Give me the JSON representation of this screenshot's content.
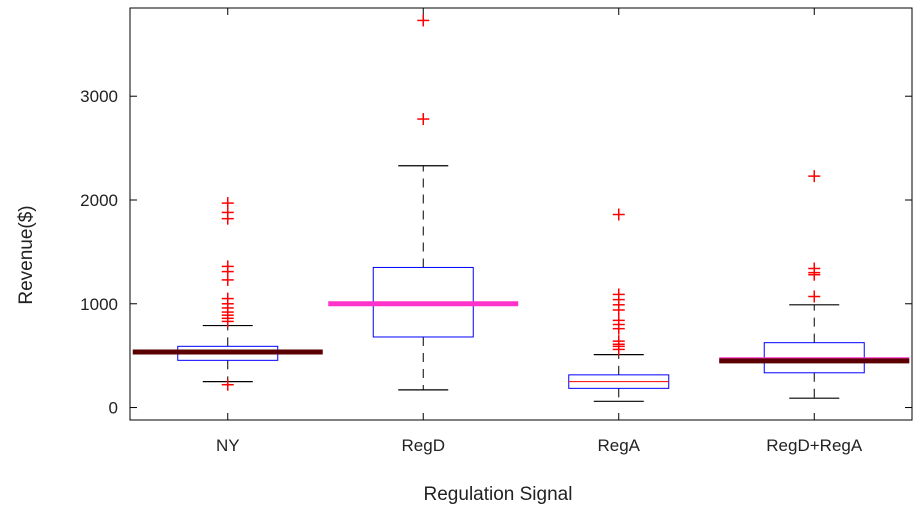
{
  "chart_data": {
    "type": "box",
    "title": "",
    "xlabel": "Regulation Signal",
    "ylabel": "Revenue($)",
    "ylim": [
      -120,
      3850
    ],
    "yticks": [
      0,
      1000,
      2000,
      3000
    ],
    "ytick_labels": [
      "0",
      "1000",
      "2000",
      "3000"
    ],
    "categories": [
      "NY",
      "RegD",
      "RegA",
      "RegD+RegA"
    ],
    "boxes": [
      {
        "category": "NY",
        "whisker_low": 250,
        "q1": 455,
        "median": 520,
        "q3": 590,
        "whisker_high": 790,
        "outliers": [
          220,
          830,
          860,
          890,
          920,
          960,
          1000,
          1050,
          1230,
          1310,
          1360,
          1820,
          1880,
          1970
        ]
      },
      {
        "category": "RegD",
        "whisker_low": 170,
        "q1": 680,
        "median": 1000,
        "q3": 1350,
        "whisker_high": 2330,
        "outliers": [
          2780,
          3730
        ]
      },
      {
        "category": "RegA",
        "whisker_low": 60,
        "q1": 185,
        "median": 250,
        "q3": 315,
        "whisker_high": 510,
        "outliers": [
          560,
          590,
          610,
          640,
          760,
          800,
          840,
          940,
          990,
          1040,
          1090,
          1860
        ]
      },
      {
        "category": "RegD+RegA",
        "whisker_low": 90,
        "q1": 335,
        "median": 455,
        "q3": 625,
        "whisker_high": 990,
        "outliers": [
          1070,
          1280,
          1300,
          1340,
          2230
        ]
      }
    ],
    "mean_lines": [
      {
        "category": "NY",
        "value": 535,
        "color": "#5a0000"
      },
      {
        "category": "RegD",
        "value": 1000,
        "color": "#ff33cc"
      },
      {
        "category": "RegD+RegA",
        "value": 460,
        "color": "#ff33cc"
      },
      {
        "category": "RegD+RegA",
        "value": 450,
        "color": "#5a0000"
      }
    ],
    "colors": {
      "box": "#0000ff",
      "median": "#ff0000",
      "whisker": "#000000",
      "outlier": "#ff0000",
      "mean_dark": "#5a0000",
      "mean_pink": "#ff33cc"
    },
    "grid": false,
    "legend": "none"
  }
}
